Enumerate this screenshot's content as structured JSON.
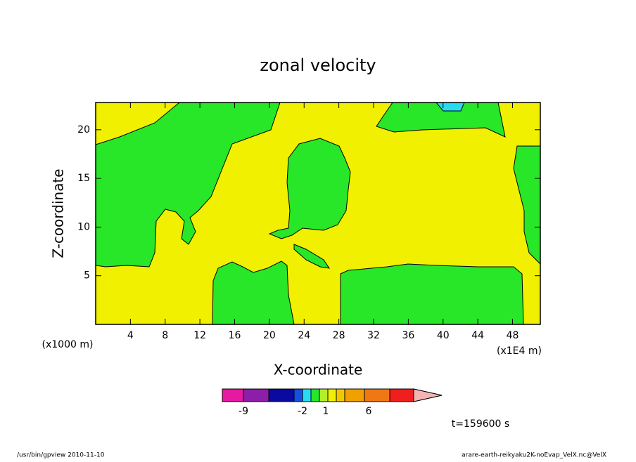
{
  "chart_data": {
    "type": "contour",
    "title": "zonal velocity",
    "x_label": "X-coordinate",
    "y_label": "Z-coordinate",
    "x_unit": "(x1E4 m)",
    "y_unit": "(x1000 m)",
    "xlim": [
      0,
      51.2
    ],
    "xticks": [
      4,
      8,
      12,
      16,
      20,
      24,
      28,
      32,
      36,
      40,
      44,
      48
    ],
    "ylim": [
      0,
      22.8
    ],
    "yticks": [
      5,
      10,
      15,
      20
    ],
    "colorbar": {
      "colors": [
        "#e619a0",
        "#8c1ea8",
        "#0a0aa0",
        "#1450e6",
        "#28dcf0",
        "#28e628",
        "#b4f028",
        "#f0f000",
        "#f0c800",
        "#f0a000",
        "#f07814",
        "#f01e1e",
        "#f07878",
        "#f5b4b4"
      ],
      "labels": [
        -9,
        -2,
        1,
        6
      ]
    },
    "time_label": "t=159600 s",
    "footer_left": "/usr/bin/gpview   2010-11-10",
    "footer_right": "arare-earth-reikyaku2K-noEvap_VelX.nc@VelX"
  }
}
